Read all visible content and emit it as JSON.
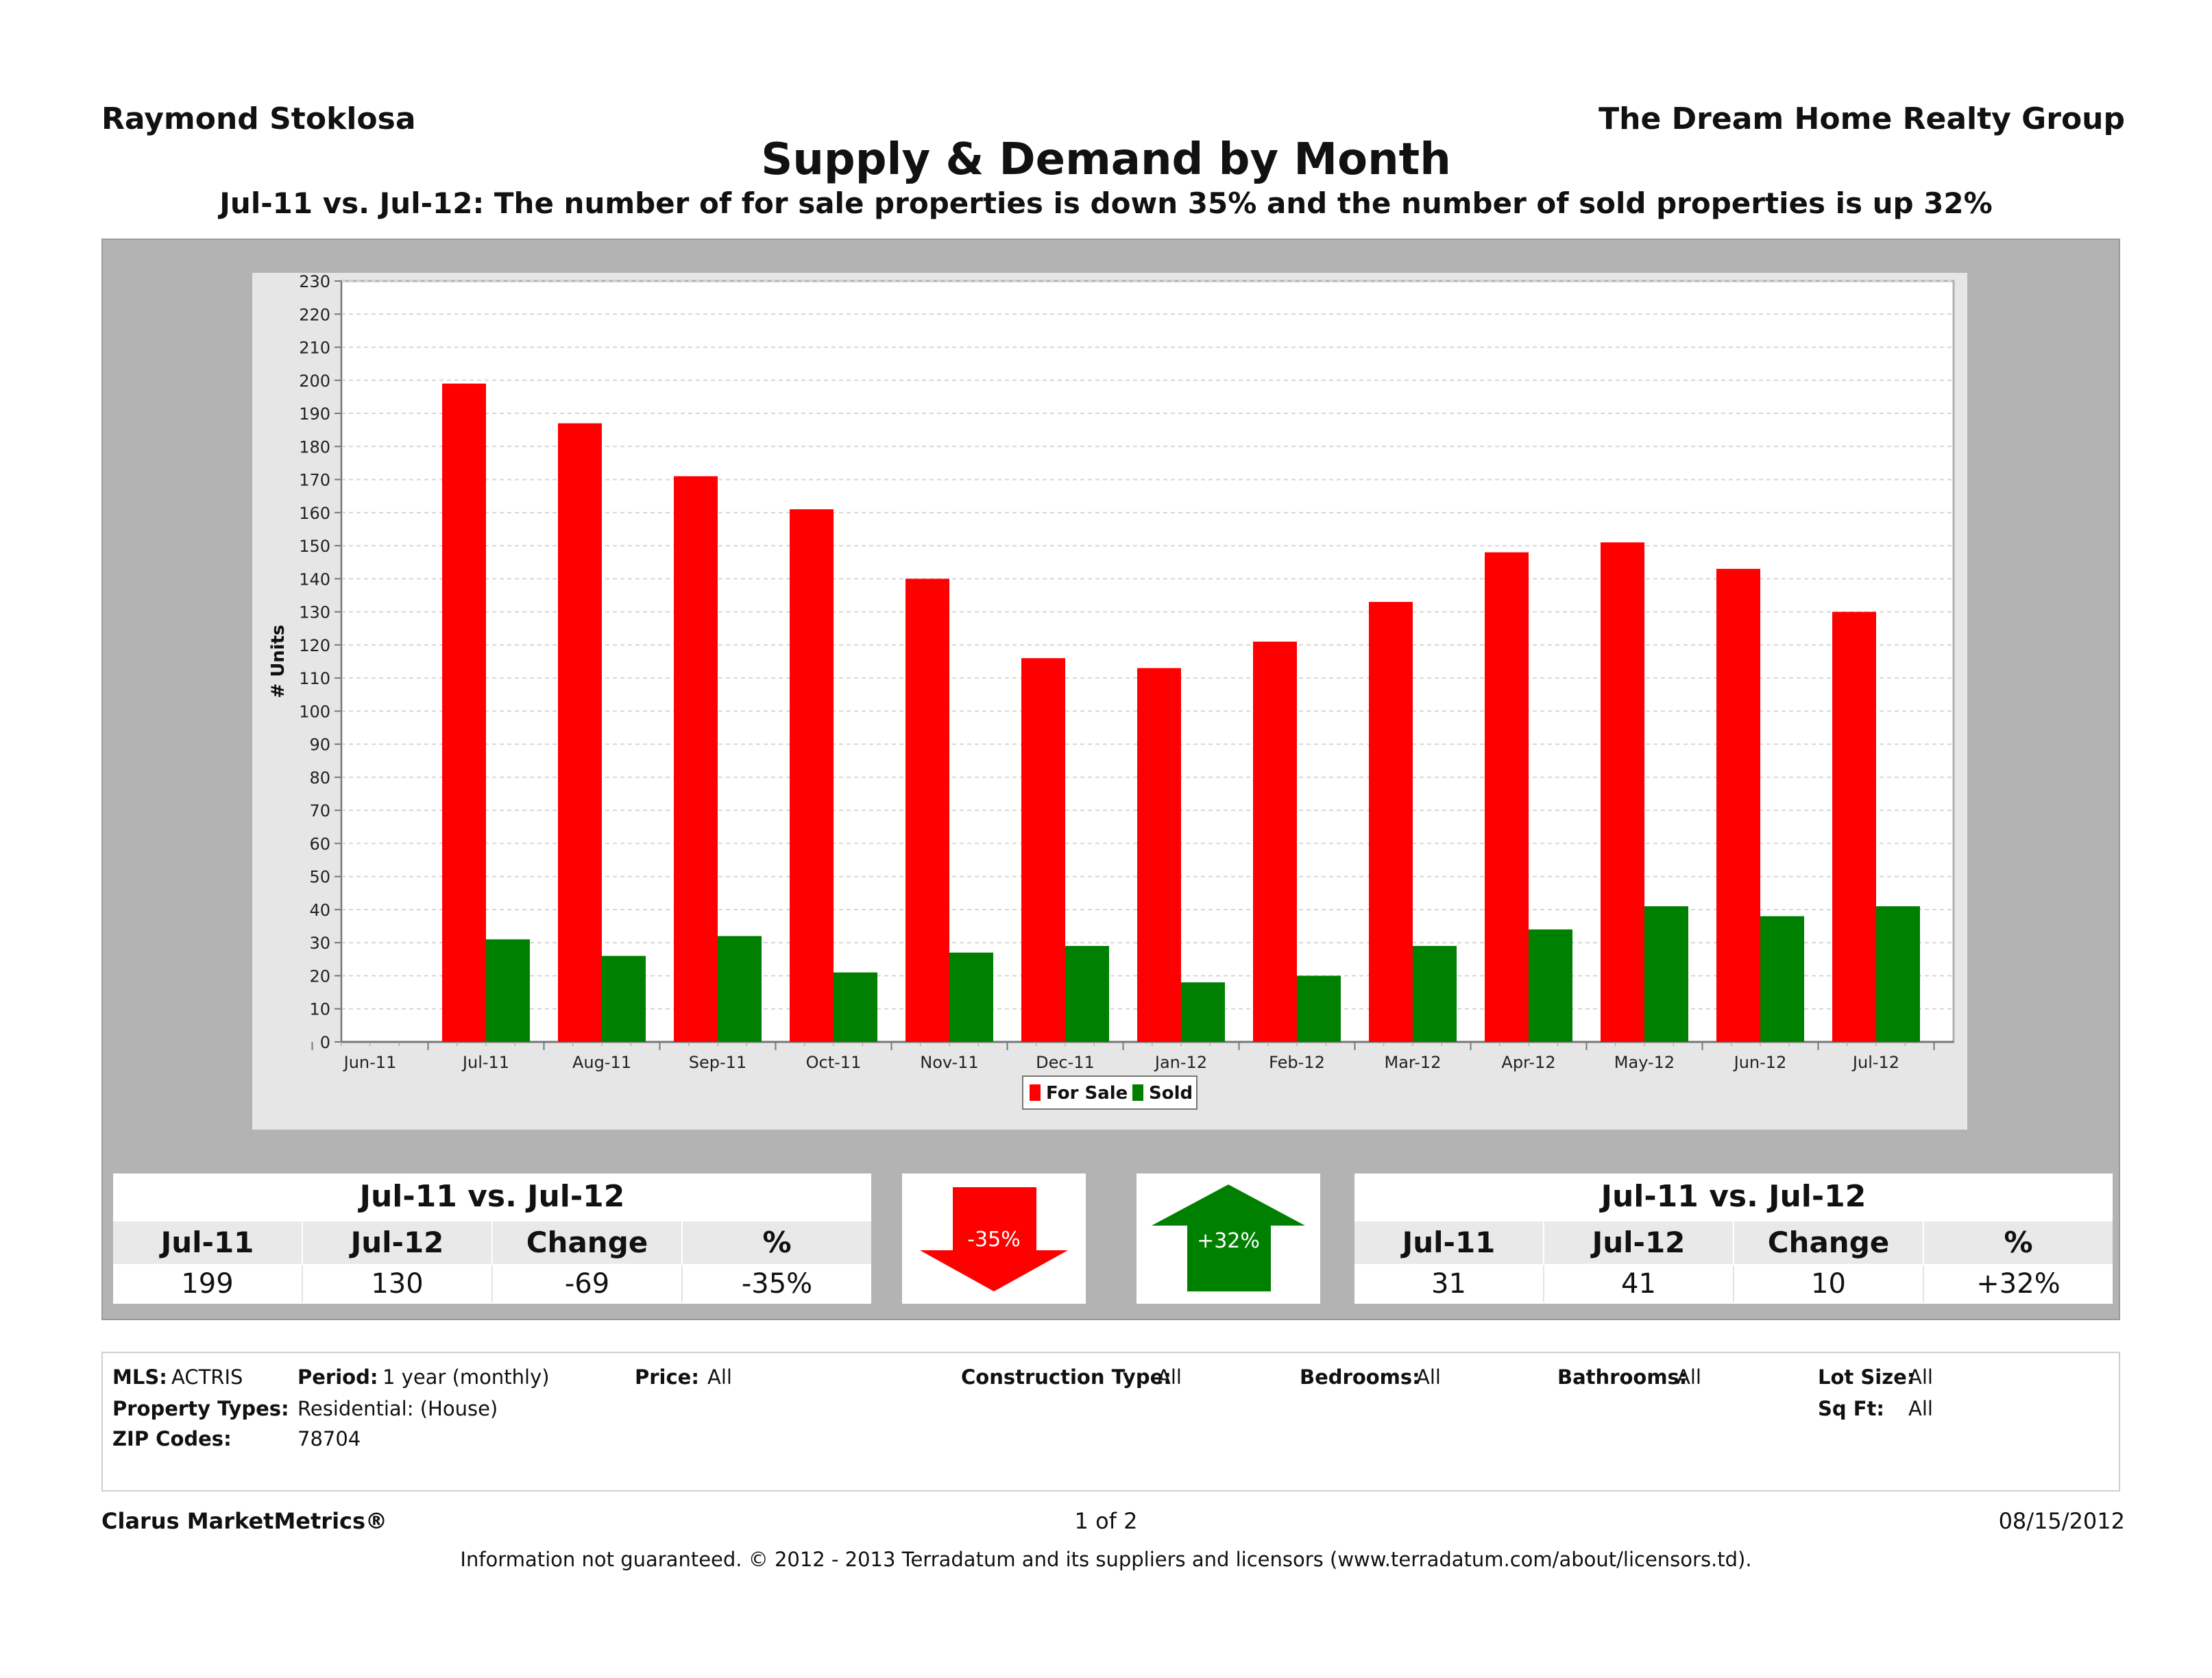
{
  "header": {
    "agent": "Raymond Stoklosa",
    "company": "The Dream Home Realty Group",
    "title": "Supply & Demand by Month",
    "subtitle": "Jul-11 vs. Jul-12:  The number of for sale properties is down 35% and the number of sold properties is up 32%"
  },
  "chart_data": {
    "type": "bar",
    "categories": [
      "Jun-11",
      "Jul-11",
      "Aug-11",
      "Sep-11",
      "Oct-11",
      "Nov-11",
      "Dec-11",
      "Jan-12",
      "Feb-12",
      "Mar-12",
      "Apr-12",
      "May-12",
      "Jun-12",
      "Jul-12"
    ],
    "series": [
      {
        "name": "For Sale",
        "color": "#ff0000",
        "values": [
          null,
          199,
          187,
          171,
          161,
          140,
          116,
          113,
          121,
          133,
          148,
          151,
          143,
          130
        ]
      },
      {
        "name": "Sold",
        "color": "#008000",
        "values": [
          null,
          31,
          26,
          32,
          21,
          27,
          29,
          18,
          20,
          29,
          34,
          41,
          38,
          41
        ]
      }
    ],
    "title": "",
    "xlabel": "",
    "ylabel": "# Units",
    "ylim": [
      0,
      230
    ],
    "ytick_step": 10,
    "grid": true,
    "legend": "bottom-center"
  },
  "stats": {
    "for_sale": {
      "heading": "Jul-11 vs. Jul-12",
      "columns": [
        "Jul-11",
        "Jul-12",
        "Change",
        "%"
      ],
      "values": [
        "199",
        "130",
        "-69",
        "-35%"
      ],
      "arrow_label": "-35%",
      "arrow_direction": "down",
      "arrow_color": "#ff0000"
    },
    "sold": {
      "heading": "Jul-11 vs. Jul-12",
      "columns": [
        "Jul-11",
        "Jul-12",
        "Change",
        "%"
      ],
      "values": [
        "31",
        "41",
        "10",
        "+32%"
      ],
      "arrow_label": "+32%",
      "arrow_direction": "up",
      "arrow_color": "#008000"
    }
  },
  "criteria": {
    "mls_label": "MLS:",
    "mls": "ACTRIS",
    "period_label": "Period:",
    "period": "1 year (monthly)",
    "price_label": "Price:",
    "price": "All",
    "construction_label": "Construction Type:",
    "construction": "All",
    "bedrooms_label": "Bedrooms:",
    "bedrooms": "All",
    "bathrooms_label": "Bathrooms:",
    "bathrooms": "All",
    "lot_label": "Lot Size:",
    "lot": "All",
    "property_types_label": "Property Types:",
    "property_types": "Residential: (House)",
    "sqft_label": "Sq Ft:",
    "sqft": "All",
    "zip_label": "ZIP Codes:",
    "zip": "78704"
  },
  "footer": {
    "brand": "Clarus MarketMetrics®",
    "page": "1 of 2",
    "date": "08/15/2012",
    "disclaimer": "Information not guaranteed.  © 2012 - 2013 Terradatum and its suppliers and licensors (www.terradatum.com/about/licensors.td)."
  }
}
